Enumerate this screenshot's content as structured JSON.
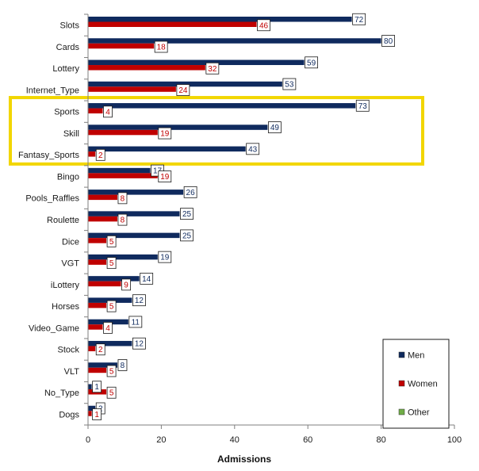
{
  "chart_data": {
    "type": "bar",
    "orientation": "horizontal",
    "categories": [
      "Slots",
      "Cards",
      "Lottery",
      "Internet_Type",
      "Sports",
      "Skill",
      "Fantasy_Sports",
      "Bingo",
      "Pools_Raffles",
      "Roulette",
      "Dice",
      "VGT",
      "iLottery",
      "Horses",
      "Video_Game",
      "Stock",
      "VLT",
      "No_Type",
      "Dogs"
    ],
    "series": [
      {
        "name": "Men",
        "color": "#0f2a5e",
        "values": [
          72,
          80,
          59,
          53,
          73,
          49,
          43,
          17,
          26,
          25,
          25,
          19,
          14,
          12,
          11,
          12,
          8,
          1,
          2
        ]
      },
      {
        "name": "Women",
        "color": "#c00000",
        "values": [
          46,
          18,
          32,
          24,
          4,
          19,
          2,
          19,
          8,
          8,
          5,
          5,
          9,
          5,
          4,
          2,
          5,
          5,
          1
        ]
      },
      {
        "name": "Other",
        "color": "#70ad47",
        "values": [
          0,
          0,
          0,
          0,
          0,
          0,
          0,
          0,
          0,
          0,
          0,
          0,
          0,
          0,
          0,
          0,
          0,
          0,
          0
        ]
      }
    ],
    "xlabel": "Admissions",
    "xlim": [
      0,
      100
    ],
    "xticks": [
      0,
      20,
      40,
      60,
      80,
      100
    ],
    "grid": false,
    "legend_position": "bottom-right",
    "highlight": {
      "categories": [
        "Sports",
        "Skill",
        "Fantasy_Sports"
      ],
      "color": "#f2d600"
    }
  }
}
